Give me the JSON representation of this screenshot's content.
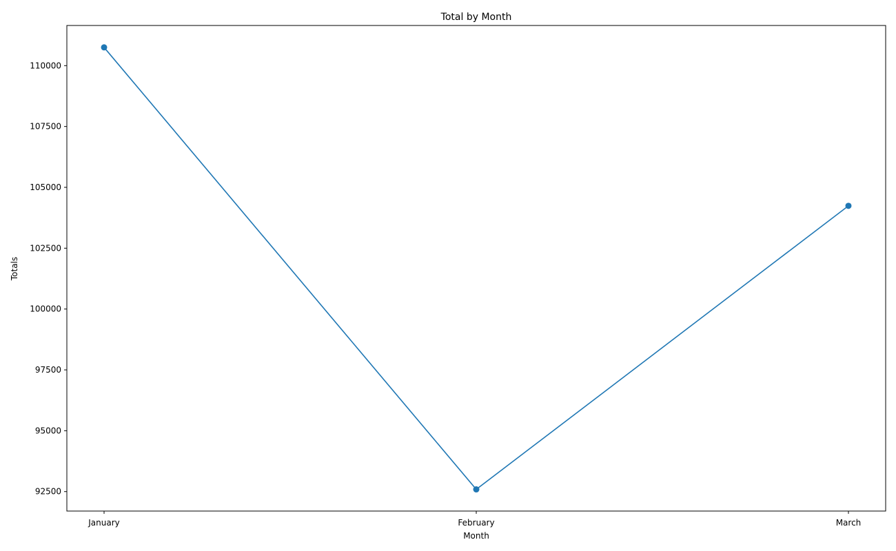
{
  "chart_data": {
    "type": "line",
    "title": "Total by Month",
    "xlabel": "Month",
    "ylabel": "Totals",
    "categories": [
      "January",
      "February",
      "March"
    ],
    "series": [
      {
        "values": [
          110750,
          92590,
          104240
        ],
        "color": "#1f77b4",
        "marker": "circle"
      }
    ],
    "ylim": [
      91700,
      111650
    ],
    "yticks": [
      92500,
      95000,
      97500,
      100000,
      102500,
      105000,
      107500,
      110000
    ],
    "grid": false,
    "legend": "none"
  }
}
